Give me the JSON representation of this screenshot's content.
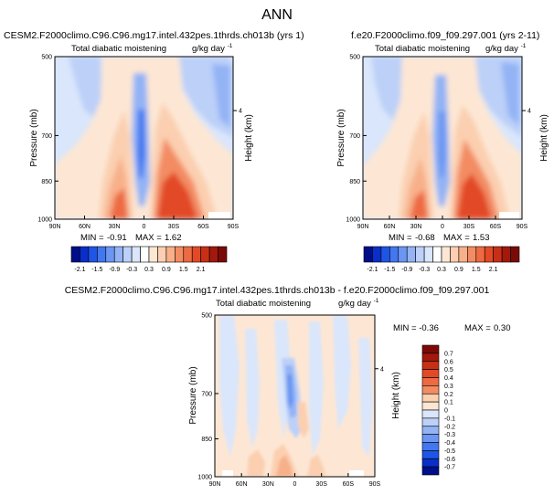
{
  "page_title": "ANN",
  "colors": {
    "neg": [
      "#000e8a",
      "#0a2ec8",
      "#1f55e4",
      "#4277f0",
      "#6b96f2",
      "#93b3f5",
      "#bcd0f8",
      "#dae6fb"
    ],
    "pos": [
      "#ffffff",
      "#fde7d4",
      "#fbcfb0",
      "#f7b08a",
      "#f38c63",
      "#ed6a42",
      "#e24a25",
      "#c73015",
      "#a3180c",
      "#7a0a06"
    ]
  },
  "chart_data": [
    {
      "type": "heatmap",
      "title": "CESM2.F2000climo.C96.C96.mg17.intel.432pes.1thrds.ch013b (yrs 1)",
      "subtitle_left": "Total diabatic moistening",
      "subtitle_right": "g/kg day",
      "subtitle_right_sup": "-1",
      "ylabel": "Pressure (mb)",
      "ylabel_right": "Height (km)",
      "x_ticks": [
        "90N",
        "60N",
        "30N",
        "0",
        "30S",
        "60S",
        "90S"
      ],
      "y_ticks": [
        "500",
        "700",
        "850",
        "1000"
      ],
      "y_ticks_right": [
        "4"
      ],
      "xlim": [
        90,
        -90
      ],
      "ylim": [
        1000,
        500
      ],
      "stats": {
        "min_label": "MIN =",
        "min": "-0.91",
        "max_label": "MAX =",
        "max": "1.62"
      },
      "colorbar": {
        "labels": [
          "-2.1",
          "-1.5",
          "-0.9",
          "-0.3",
          "0.3",
          "0.9",
          "1.5",
          "2.1"
        ]
      }
    },
    {
      "type": "heatmap",
      "title": "f.e20.F2000climo.f09_f09.297.001 (yrs 2-11)",
      "subtitle_left": "Total diabatic moistening",
      "subtitle_right": "g/kg day",
      "subtitle_right_sup": "-1",
      "ylabel": "Pressure (mb)",
      "ylabel_right": "Height (km)",
      "x_ticks": [
        "90N",
        "60N",
        "30N",
        "0",
        "30S",
        "60S",
        "90S"
      ],
      "y_ticks": [
        "500",
        "700",
        "850",
        "1000"
      ],
      "y_ticks_right": [
        "4"
      ],
      "xlim": [
        90,
        -90
      ],
      "ylim": [
        1000,
        500
      ],
      "stats": {
        "min_label": "MIN =",
        "min": "-0.68",
        "max_label": "MAX =",
        "max": "1.53"
      },
      "colorbar": {
        "labels": [
          "-2.1",
          "-1.5",
          "-0.9",
          "-0.3",
          "0.3",
          "0.9",
          "1.5",
          "2.1"
        ]
      }
    },
    {
      "type": "heatmap",
      "title": "CESM2.F2000climo.C96.C96.mg17.intel.432pes.1thrds.ch013b - f.e20.F2000climo.f09_f09.297.001",
      "subtitle_left": "Total diabatic moistening",
      "subtitle_right": "g/kg day",
      "subtitle_right_sup": "-1",
      "ylabel": "Pressure (mb)",
      "ylabel_right": "Height (km)",
      "x_ticks": [
        "90N",
        "60N",
        "30N",
        "0",
        "30S",
        "60S",
        "90S"
      ],
      "y_ticks": [
        "500",
        "700",
        "850",
        "1000"
      ],
      "y_ticks_right": [
        "4"
      ],
      "xlim": [
        90,
        -90
      ],
      "ylim": [
        1000,
        500
      ],
      "stats": {
        "min_label": "MIN = -0.36",
        "max_label": "MAX =",
        "max": "0.30"
      },
      "colorbar": {
        "labels": [
          "0.7",
          "0.6",
          "0.5",
          "0.4",
          "0.3",
          "0.2",
          "0.1",
          "0",
          "-0.1",
          "-0.2",
          "-0.3",
          "-0.4",
          "-0.5",
          "-0.6",
          "-0.7"
        ]
      }
    }
  ]
}
